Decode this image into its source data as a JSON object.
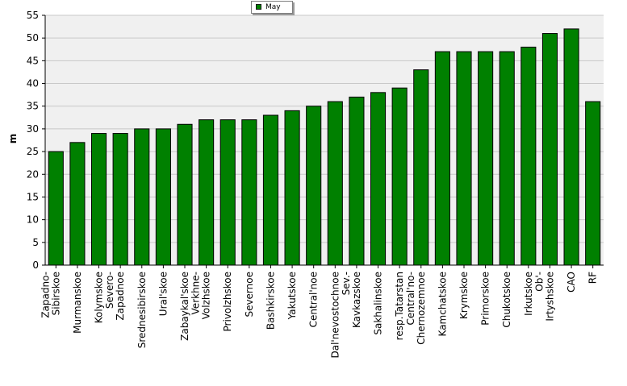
{
  "chart_data": {
    "type": "bar",
    "title": "",
    "xlabel": "",
    "ylabel": "m",
    "ylim": [
      0,
      55
    ],
    "yticks": [
      0,
      5,
      10,
      15,
      20,
      25,
      30,
      35,
      40,
      45,
      50,
      55
    ],
    "grid": true,
    "legend_position": "top-center",
    "categories": [
      [
        "Zapadno-",
        "Sibirskoe"
      ],
      [
        "Murmanskoe"
      ],
      [
        "Kolymskoe"
      ],
      [
        "Severo-",
        "Zapadnoe"
      ],
      [
        "Srednesibirskoe"
      ],
      [
        "Ural'skoe"
      ],
      [
        "Zabaykal'skoe"
      ],
      [
        "Verkhne-",
        "Volzhskoe"
      ],
      [
        "Privolzhskoe"
      ],
      [
        "Severnoe"
      ],
      [
        "Bashkirskoe"
      ],
      [
        "Yakutskoe"
      ],
      [
        "Central'noe"
      ],
      [
        "Dal'nevostochnoe"
      ],
      [
        "Sev.-",
        "Kavkazskoe"
      ],
      [
        "Sakhalinskoe"
      ],
      [
        "resp.Tatarstan"
      ],
      [
        "Central'no-",
        "Chernozemnoe"
      ],
      [
        "Kamchatskoe"
      ],
      [
        "Krymskoe"
      ],
      [
        "Primorskoe"
      ],
      [
        "Chukotskoe"
      ],
      [
        "Irkutskoe"
      ],
      [
        "Ob'-",
        "Irtyshskoe"
      ],
      [
        "CAO"
      ],
      [
        "RF"
      ]
    ],
    "series": [
      {
        "name": "May",
        "color": "#008000",
        "values": [
          25,
          27,
          29,
          29,
          30,
          30,
          31,
          32,
          32,
          32,
          33,
          34,
          35,
          36,
          37,
          38,
          39,
          43,
          47,
          47,
          47,
          47,
          48,
          51,
          52,
          36
        ]
      }
    ]
  }
}
